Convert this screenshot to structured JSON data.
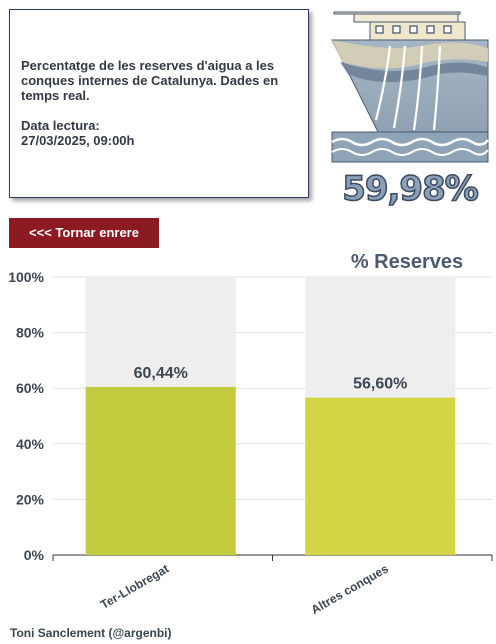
{
  "info": {
    "description": "Percentatge de les reserves d'aigua a les conques internes de Catalunya. Dades en  temps real.",
    "date_label": "Data lectura:",
    "date_value": "27/03/2025, 09:00h"
  },
  "total_reserve": "59,98%",
  "back_button": "<<< Tornar enrere",
  "footer": {
    "author": "Toni Sanclement (@argenbi)"
  },
  "colors": {
    "bar_background": "#eeeeee",
    "series": [
      "#c3cc3f",
      "#d4d545"
    ],
    "back_button_bg": "#8b1a22"
  },
  "chart_data": {
    "type": "bar",
    "title": "% Reserves",
    "categories": [
      "Ter-Llobregat",
      "Altres conques"
    ],
    "values": [
      60.44,
      56.6
    ],
    "value_labels": [
      "60,44%",
      "56,60%"
    ],
    "ylim": [
      0,
      100
    ],
    "yticks": [
      0,
      20,
      40,
      60,
      80,
      100
    ],
    "ytick_labels": [
      "0%",
      "20%",
      "40%",
      "60%",
      "80%",
      "100%"
    ],
    "xlabel": "",
    "ylabel": "",
    "grid": true,
    "legend": false
  }
}
